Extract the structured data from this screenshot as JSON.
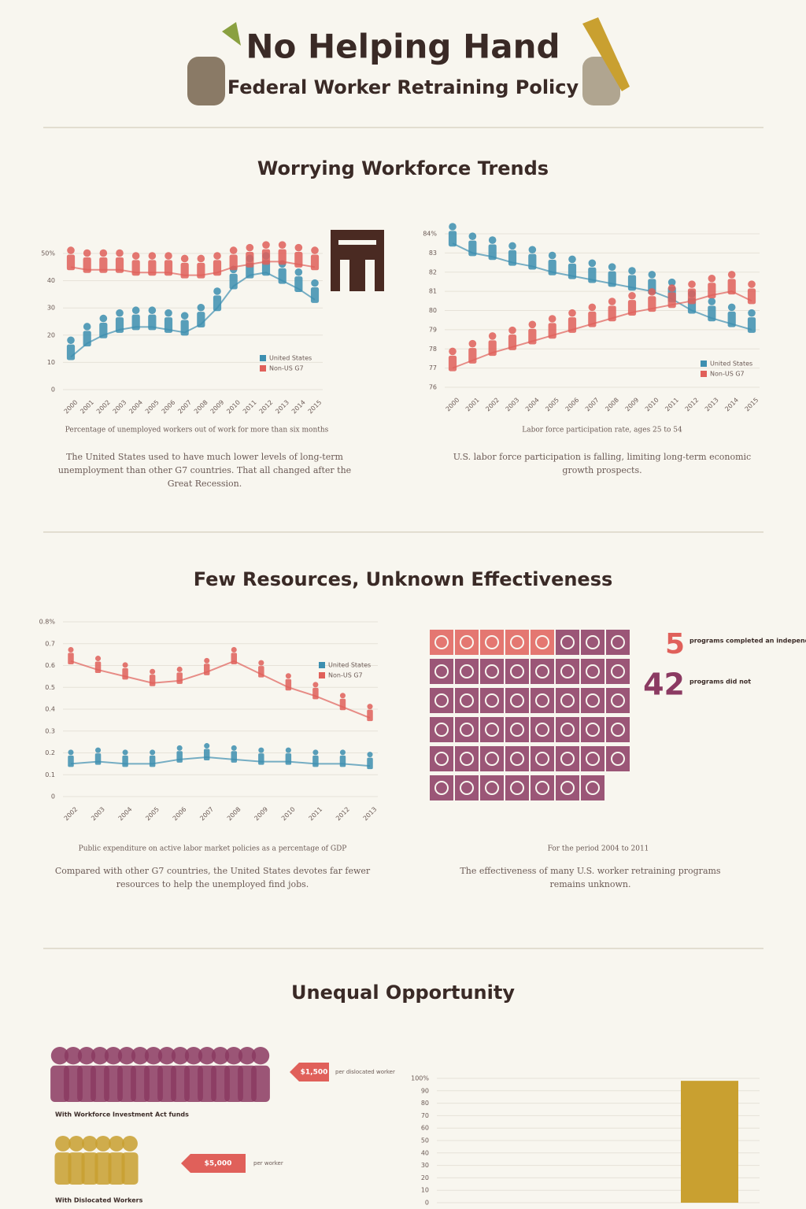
{
  "header": {
    "title": "No Helping Hand",
    "subtitle": "Federal Worker Retraining Policy"
  },
  "sections": [
    {
      "title": "Worrying Workforce Trends"
    },
    {
      "title": "Few Resources, Unknown Effectiveness"
    },
    {
      "title": "Unequal Opportunity"
    }
  ],
  "chart_data": [
    {
      "type": "line",
      "caption": "Percentage of unemployed workers out of work for more than six months",
      "description": "The United States used to have much lower levels of long-term unemployment than other G7 countries. That all changed after the Great Recession.",
      "categories": [
        "2000",
        "2001",
        "2002",
        "2003",
        "2004",
        "2005",
        "2006",
        "2007",
        "2008",
        "2009",
        "2010",
        "2011",
        "2012",
        "2013",
        "2014",
        "2015"
      ],
      "series": [
        {
          "name": "United States",
          "color": "#3d8fb0",
          "values": [
            12,
            17,
            20,
            22,
            23,
            23,
            22,
            21,
            24,
            30,
            38,
            42,
            43,
            40,
            37,
            33
          ]
        },
        {
          "name": "Non-US G7",
          "color": "#e0605a",
          "values": [
            45,
            44,
            44,
            44,
            43,
            43,
            43,
            42,
            42,
            43,
            45,
            46,
            47,
            47,
            46,
            45
          ]
        }
      ],
      "ylim": [
        0,
        50
      ],
      "yticks": [
        0,
        10,
        20,
        30,
        40,
        {
          "value": 50,
          "label": "50%"
        }
      ],
      "grid": true
    },
    {
      "type": "line",
      "caption": "Labor force participation rate, ages 25 to 54",
      "description": "U.S. labor force participation is falling, limiting long-term economic growth prospects.",
      "categories": [
        "2000",
        "2001",
        "2002",
        "2003",
        "2004",
        "2005",
        "2006",
        "2007",
        "2008",
        "2009",
        "2010",
        "2011",
        "2012",
        "2013",
        "2014",
        "2015"
      ],
      "series": [
        {
          "name": "United States",
          "color": "#3d8fb0",
          "values": [
            83.5,
            83,
            82.8,
            82.5,
            82.3,
            82,
            81.8,
            81.6,
            81.4,
            81.2,
            81,
            80.6,
            80,
            79.6,
            79.3,
            79
          ]
        },
        {
          "name": "Non-US G7",
          "color": "#e0605a",
          "values": [
            77,
            77.4,
            77.8,
            78.1,
            78.4,
            78.7,
            79,
            79.3,
            79.6,
            79.9,
            80.1,
            80.3,
            80.5,
            80.8,
            81,
            80.5
          ]
        }
      ],
      "ylim": [
        76,
        84
      ],
      "yticks": [
        76,
        77,
        78,
        79,
        80,
        81,
        82,
        83,
        {
          "value": 84,
          "label": "84%"
        }
      ],
      "grid": true
    },
    {
      "type": "line",
      "caption": "Public expenditure on active labor market policies as a percentage of GDP",
      "description": "Compared with other G7 countries, the United States devotes far fewer resources to help the unemployed find jobs.",
      "categories": [
        "2002",
        "2003",
        "2004",
        "2005",
        "2006",
        "2007",
        "2008",
        "2009",
        "2010",
        "2011",
        "2012",
        "2013"
      ],
      "series": [
        {
          "name": "United States",
          "color": "#3d8fb0",
          "values": [
            0.15,
            0.16,
            0.15,
            0.15,
            0.17,
            0.18,
            0.17,
            0.16,
            0.16,
            0.15,
            0.15,
            0.14
          ]
        },
        {
          "name": "Non-US G7",
          "color": "#e0605a",
          "values": [
            0.62,
            0.58,
            0.55,
            0.52,
            0.53,
            0.57,
            0.62,
            0.56,
            0.5,
            0.46,
            0.41,
            0.36
          ]
        }
      ],
      "ylim": [
        0,
        0.8
      ],
      "yticks": [
        0,
        0.1,
        0.2,
        0.3,
        0.4,
        0.5,
        0.6,
        0.7,
        {
          "value": 0.8,
          "label": "0.8%"
        }
      ],
      "grid": true
    },
    {
      "type": "waffle",
      "caption": "For the period 2004 to 2011",
      "description": "The effectiveness of many U.S. worker retraining programs remains unknown.",
      "series": [
        {
          "name": "programs completed an independent impact study",
          "color": "#e0605a",
          "values": [
            5
          ]
        },
        {
          "name": "programs did not",
          "color": "#8b3a62",
          "values": [
            42
          ]
        }
      ]
    },
    {
      "type": "bar",
      "values": [
        98
      ],
      "color": "#c9a030",
      "ylim": [
        0,
        100
      ],
      "yticks": [
        0,
        10,
        20,
        30,
        40,
        50,
        60,
        70,
        80,
        90,
        {
          "value": 100,
          "label": "100%"
        }
      ],
      "grid": true
    }
  ],
  "pictograph": [
    {
      "label": "With Workforce Investment Act funds",
      "tag": "$1,500",
      "note": "per dislocated worker"
    },
    {
      "label": "With Dislocated Workers",
      "tag": "$5,000",
      "note": "per worker"
    }
  ]
}
